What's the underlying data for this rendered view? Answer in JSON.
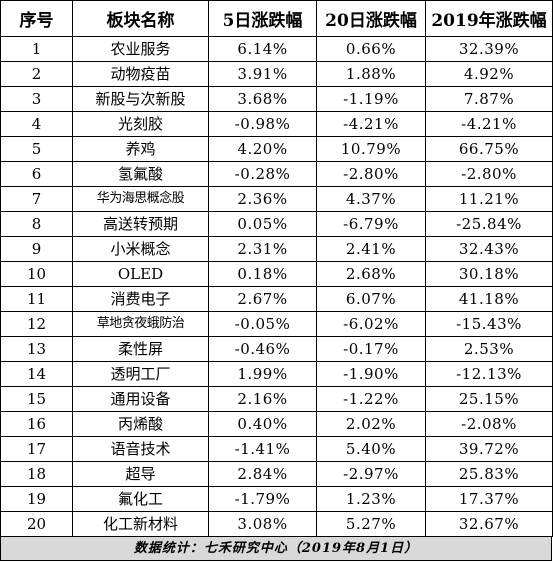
{
  "table": {
    "headers": [
      "序号",
      "板块名称",
      "5日涨跌幅",
      "20日涨跌幅",
      "2019年涨跌幅"
    ],
    "rows": [
      {
        "idx": "1",
        "name": "农业服务",
        "d5": "6.14%",
        "d20": "0.66%",
        "ytd": "32.39%"
      },
      {
        "idx": "2",
        "name": "动物疫苗",
        "d5": "3.91%",
        "d20": "1.88%",
        "ytd": "4.92%"
      },
      {
        "idx": "3",
        "name": "新股与次新股",
        "d5": "3.68%",
        "d20": "-1.19%",
        "ytd": "7.87%"
      },
      {
        "idx": "4",
        "name": "光刻胶",
        "d5": "-0.98%",
        "d20": "-4.21%",
        "ytd": "-4.21%"
      },
      {
        "idx": "5",
        "name": "养鸡",
        "d5": "4.20%",
        "d20": "10.79%",
        "ytd": "66.75%"
      },
      {
        "idx": "6",
        "name": "氢氟酸",
        "d5": "-0.28%",
        "d20": "-2.80%",
        "ytd": "-2.80%"
      },
      {
        "idx": "7",
        "name": "华为海思概念股",
        "d5": "2.36%",
        "d20": "4.37%",
        "ytd": "11.21%"
      },
      {
        "idx": "8",
        "name": "高送转预期",
        "d5": "0.05%",
        "d20": "-6.79%",
        "ytd": "-25.84%"
      },
      {
        "idx": "9",
        "name": "小米概念",
        "d5": "2.31%",
        "d20": "2.41%",
        "ytd": "32.43%"
      },
      {
        "idx": "10",
        "name": "OLED",
        "d5": "0.18%",
        "d20": "2.68%",
        "ytd": "30.18%"
      },
      {
        "idx": "11",
        "name": "消费电子",
        "d5": "2.67%",
        "d20": "6.07%",
        "ytd": "41.18%"
      },
      {
        "idx": "12",
        "name": "草地贪夜蛾防治",
        "d5": "-0.05%",
        "d20": "-6.02%",
        "ytd": "-15.43%"
      },
      {
        "idx": "13",
        "name": "柔性屏",
        "d5": "-0.46%",
        "d20": "-0.17%",
        "ytd": "2.53%"
      },
      {
        "idx": "14",
        "name": "透明工厂",
        "d5": "1.99%",
        "d20": "-1.90%",
        "ytd": "-12.13%"
      },
      {
        "idx": "15",
        "name": "通用设备",
        "d5": "2.16%",
        "d20": "-1.22%",
        "ytd": "25.15%"
      },
      {
        "idx": "16",
        "name": "丙烯酸",
        "d5": "0.40%",
        "d20": "2.02%",
        "ytd": "-2.08%"
      },
      {
        "idx": "17",
        "name": "语音技术",
        "d5": "-1.41%",
        "d20": "5.40%",
        "ytd": "39.72%"
      },
      {
        "idx": "18",
        "name": "超导",
        "d5": "2.84%",
        "d20": "-2.97%",
        "ytd": "25.83%"
      },
      {
        "idx": "19",
        "name": "氟化工",
        "d5": "-1.79%",
        "d20": "1.23%",
        "ytd": "17.37%"
      },
      {
        "idx": "20",
        "name": "化工新材料",
        "d5": "3.08%",
        "d20": "5.27%",
        "ytd": "32.67%"
      }
    ]
  },
  "footer": {
    "text": "数据统计：七禾研究中心（2019年8月1日）"
  },
  "colors": {
    "footer_bg": "#d9d9d9",
    "border": "#000000"
  }
}
